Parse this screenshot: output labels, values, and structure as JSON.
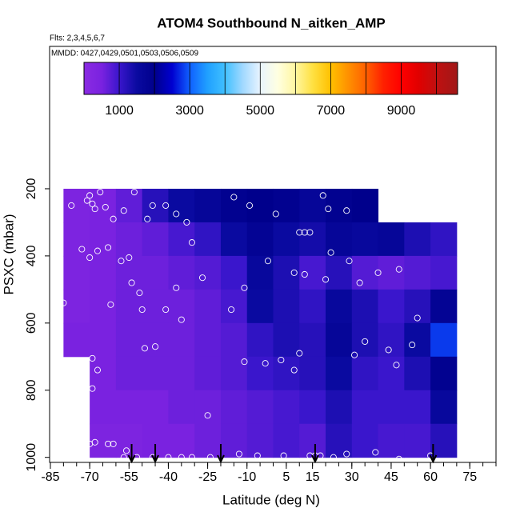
{
  "chart_data": {
    "type": "heatmap",
    "title": "ATOM4 Southbound N_aitken_AMP",
    "subtitle": "Flts: 2,3,4,5,6,7",
    "annotation": "MMDD: 0427,0429,0501,0503,0506,0509",
    "x_label": "Latitude (deg N)",
    "y_label": "PSXC (mbar)",
    "xlim": [
      -85.3,
      85
    ],
    "xticks": [
      -85,
      -70,
      -55,
      -40,
      -25,
      -10,
      5,
      15,
      30,
      45,
      60,
      75
    ],
    "xminor": [
      -85,
      -80,
      -75,
      -70,
      -65,
      -60,
      -55,
      -50,
      -45,
      -40,
      -35,
      -30,
      -25,
      -20,
      -15,
      -10,
      -5,
      0,
      5,
      10,
      15,
      20,
      25,
      30,
      35,
      40,
      45,
      50,
      55,
      60,
      65,
      70,
      75,
      80,
      85
    ],
    "ylim": [
      1015,
      -224
    ],
    "yticks": [
      200,
      400,
      600,
      800,
      1000
    ],
    "lat_edges": [
      -80,
      -70,
      -60,
      -50,
      -40,
      -30,
      -20,
      -10,
      0,
      10,
      20,
      30,
      40,
      50,
      60,
      70
    ],
    "p_edges": [
      200,
      300,
      400,
      500,
      600,
      700,
      800,
      900,
      1000
    ],
    "values": [
      [
        400,
        500,
        700,
        1200,
        1500,
        1700,
        1900,
        2000,
        1900,
        1700,
        1900,
        2000,
        null,
        null,
        null
      ],
      [
        400,
        500,
        600,
        700,
        900,
        1100,
        1500,
        1800,
        1500,
        1400,
        1700,
        1600,
        1700,
        1300,
        1100
      ],
      [
        400,
        500,
        600,
        600,
        700,
        800,
        1000,
        1600,
        1300,
        900,
        1200,
        800,
        700,
        800,
        900
      ],
      [
        400,
        500,
        600,
        600,
        600,
        700,
        900,
        1500,
        1300,
        1100,
        1600,
        1300,
        1000,
        1200,
        1800
      ],
      [
        500,
        500,
        600,
        600,
        600,
        700,
        800,
        1100,
        1300,
        1200,
        1700,
        1300,
        1100,
        1500,
        2800
      ],
      [
        null,
        500,
        600,
        600,
        600,
        700,
        800,
        1000,
        1100,
        1200,
        1500,
        1100,
        1000,
        1300,
        1900
      ],
      [
        null,
        500,
        500,
        500,
        600,
        600,
        700,
        800,
        900,
        1000,
        1300,
        1000,
        1000,
        1000,
        1600
      ],
      [
        null,
        400,
        400,
        500,
        500,
        600,
        700,
        800,
        900,
        800,
        1200,
        1000,
        900,
        900,
        1200
      ]
    ],
    "colorscale": [
      [
        0,
        "#8a2be2"
      ],
      [
        500,
        "#7a22e0"
      ],
      [
        1000,
        "#3a16cc"
      ],
      [
        1500,
        "#0a0aa0"
      ],
      [
        2000,
        "#00008c"
      ],
      [
        2500,
        "#0000d0"
      ],
      [
        3000,
        "#1060ff"
      ],
      [
        3500,
        "#20a0ff"
      ],
      [
        4000,
        "#40c0ff"
      ],
      [
        4500,
        "#a0d8ff"
      ],
      [
        5000,
        "#e8f4ff"
      ],
      [
        5500,
        "#ffffe0"
      ],
      [
        6000,
        "#fff6a0"
      ],
      [
        6500,
        "#ffe040"
      ],
      [
        7000,
        "#ffc000"
      ],
      [
        7500,
        "#ff9000"
      ],
      [
        8000,
        "#ff6000"
      ],
      [
        8500,
        "#ff2000"
      ],
      [
        9000,
        "#ff0000"
      ],
      [
        9500,
        "#e00000"
      ],
      [
        10000,
        "#c01010"
      ],
      [
        10600,
        "#a01818"
      ]
    ],
    "cblim": [
      0,
      10600
    ],
    "cbticks": [
      1000,
      3000,
      5000,
      7000,
      9000
    ],
    "cbdividers": [
      1000,
      2000,
      3000,
      4000,
      5000,
      6000,
      7000,
      8000,
      9000,
      10000
    ],
    "points": {
      "color": "#ffffff",
      "x": [
        -84,
        -77,
        -71,
        -70,
        -69,
        -68,
        -66,
        -64,
        -61,
        -57,
        -53,
        -48,
        -46,
        -41,
        -37,
        -33,
        -31,
        -15,
        -9,
        1,
        10,
        12,
        14,
        19,
        21,
        28,
        51,
        -73,
        -70,
        -67,
        -63,
        -58,
        -55,
        -27,
        -37,
        -11,
        -2,
        8,
        12,
        20,
        22,
        29,
        33,
        40,
        48,
        -54,
        -51,
        -80,
        -62,
        -50,
        -41,
        -35,
        -16,
        55,
        72,
        -49,
        -45,
        -69,
        -67,
        -69,
        -11,
        -3,
        3,
        10,
        8,
        31,
        35,
        44,
        47,
        53,
        -25,
        -68,
        -63,
        -61,
        -56,
        -57,
        -52,
        -46,
        -40,
        -35,
        -31,
        -24,
        -13,
        -6,
        4,
        14,
        16,
        18,
        23,
        28,
        39,
        48,
        60,
        72,
        -70
      ],
      "y": [
        240,
        250,
        235,
        220,
        245,
        260,
        210,
        255,
        290,
        265,
        210,
        290,
        250,
        250,
        275,
        300,
        360,
        225,
        250,
        275,
        330,
        330,
        330,
        220,
        260,
        265,
        290,
        380,
        405,
        385,
        375,
        415,
        405,
        465,
        495,
        495,
        415,
        450,
        455,
        470,
        390,
        415,
        480,
        450,
        440,
        480,
        510,
        540,
        545,
        560,
        560,
        590,
        560,
        585,
        625,
        675,
        670,
        705,
        740,
        795,
        715,
        720,
        710,
        690,
        740,
        695,
        655,
        680,
        725,
        665,
        875,
        955,
        960,
        960,
        980,
        1000,
        1000,
        1000,
        1000,
        1000,
        1000,
        1000,
        990,
        995,
        995,
        995,
        995,
        995,
        1000,
        990,
        985,
        1005,
        995,
        990,
        960
      ]
    },
    "flight_markers": [
      -54,
      -45,
      -20,
      16,
      61
    ]
  }
}
